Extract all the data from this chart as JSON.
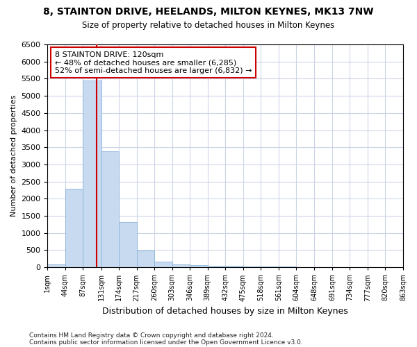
{
  "title_line1": "8, STAINTON DRIVE, HEELANDS, MILTON KEYNES, MK13 7NW",
  "title_line2": "Size of property relative to detached houses in Milton Keynes",
  "xlabel": "Distribution of detached houses by size in Milton Keynes",
  "ylabel": "Number of detached properties",
  "footnote1": "Contains HM Land Registry data © Crown copyright and database right 2024.",
  "footnote2": "Contains public sector information licensed under the Open Government Licence v3.0.",
  "bar_values": [
    75,
    2280,
    5440,
    3380,
    1310,
    480,
    160,
    80,
    55,
    45,
    35,
    25,
    20,
    15,
    10,
    8,
    5,
    4,
    3,
    2
  ],
  "bin_edges": [
    1,
    44,
    87,
    131,
    174,
    217,
    260,
    303,
    346,
    389,
    432,
    475,
    518,
    561,
    604,
    648,
    691,
    734,
    777,
    820,
    863
  ],
  "bar_color": "#c8daf0",
  "bar_edge_color": "#8ab4d8",
  "vline_x": 120,
  "vline_color": "#cc0000",
  "annotation_title": "8 STAINTON DRIVE: 120sqm",
  "annotation_line1": "← 48% of detached houses are smaller (6,285)",
  "annotation_line2": "52% of semi-detached houses are larger (6,832) →",
  "annotation_box_color": "#cc0000",
  "ylim": [
    0,
    6500
  ],
  "yticks": [
    0,
    500,
    1000,
    1500,
    2000,
    2500,
    3000,
    3500,
    4000,
    4500,
    5000,
    5500,
    6000,
    6500
  ],
  "grid_color": "#ccd5e8",
  "figsize": [
    6.0,
    5.0
  ],
  "dpi": 100
}
